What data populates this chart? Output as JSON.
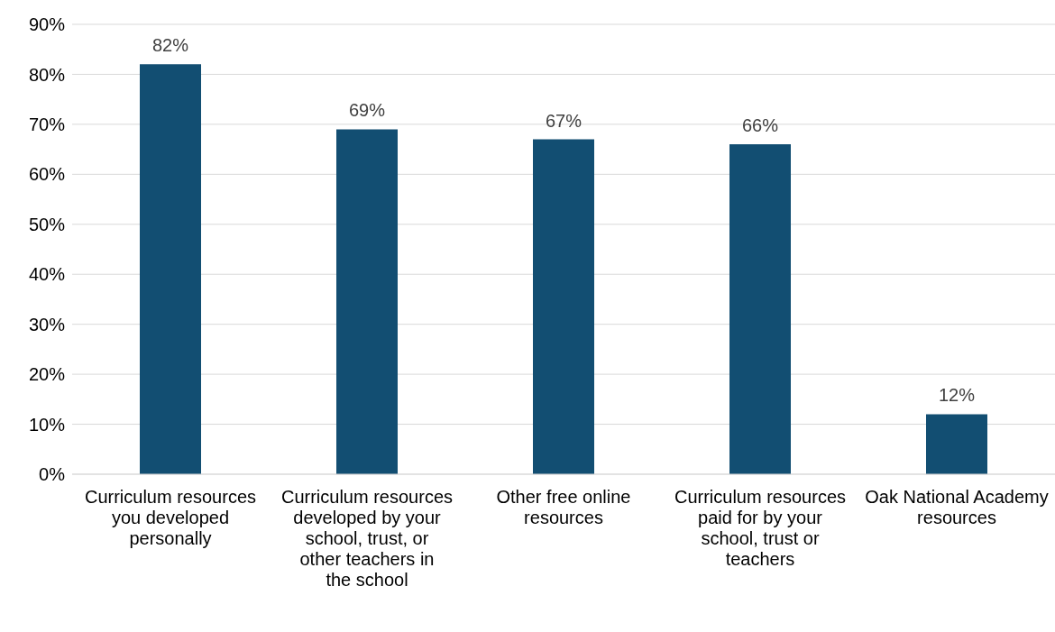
{
  "chart_data": {
    "type": "bar",
    "categories": [
      "Curriculum resources you developed personally",
      "Curriculum resources developed by your school, trust, or other teachers in the school",
      "Other free online resources",
      "Curriculum resources paid for by your school, trust or teachers",
      "Oak National Academy resources"
    ],
    "values": [
      82,
      69,
      67,
      66,
      12
    ],
    "value_labels": [
      "82%",
      "69%",
      "67%",
      "66%",
      "12%"
    ],
    "color": "#124e72",
    "ylim": [
      0,
      90
    ],
    "yticks": [
      {
        "value": 0,
        "label": "0%"
      },
      {
        "value": 10,
        "label": "10%"
      },
      {
        "value": 20,
        "label": "20%"
      },
      {
        "value": 30,
        "label": "30%"
      },
      {
        "value": 40,
        "label": "40%"
      },
      {
        "value": 50,
        "label": "50%"
      },
      {
        "value": 60,
        "label": "60%"
      },
      {
        "value": 70,
        "label": "70%"
      },
      {
        "value": 80,
        "label": "80%"
      },
      {
        "value": 90,
        "label": "90%"
      }
    ],
    "grid": "y",
    "legend": false
  }
}
